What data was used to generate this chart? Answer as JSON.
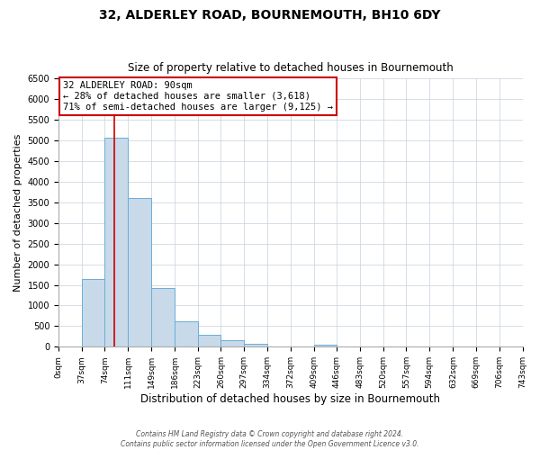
{
  "title": "32, ALDERLEY ROAD, BOURNEMOUTH, BH10 6DY",
  "subtitle": "Size of property relative to detached houses in Bournemouth",
  "xlabel": "Distribution of detached houses by size in Bournemouth",
  "ylabel": "Number of detached properties",
  "bin_edges": [
    0,
    37,
    74,
    111,
    149,
    186,
    223,
    260,
    297,
    334,
    372,
    409,
    446,
    483,
    520,
    557,
    594,
    632,
    669,
    706,
    743
  ],
  "bar_heights": [
    0,
    1650,
    5075,
    3600,
    1420,
    610,
    300,
    155,
    75,
    0,
    0,
    50,
    0,
    0,
    0,
    0,
    0,
    0,
    0,
    0
  ],
  "bar_color": "#c8d9ea",
  "bar_edge_color": "#6aaed6",
  "grid_color": "#c8d0dc",
  "property_line_x": 90,
  "property_line_color": "#cc0000",
  "annotation_text": "32 ALDERLEY ROAD: 90sqm\n← 28% of detached houses are smaller (3,618)\n71% of semi-detached houses are larger (9,125) →",
  "annotation_box_color": "#ffffff",
  "annotation_box_edge_color": "#cc0000",
  "ylim": [
    0,
    6500
  ],
  "yticks": [
    0,
    500,
    1000,
    1500,
    2000,
    2500,
    3000,
    3500,
    4000,
    4500,
    5000,
    5500,
    6000,
    6500
  ],
  "tick_labels": [
    "0sqm",
    "37sqm",
    "74sqm",
    "111sqm",
    "149sqm",
    "186sqm",
    "223sqm",
    "260sqm",
    "297sqm",
    "334sqm",
    "372sqm",
    "409sqm",
    "446sqm",
    "483sqm",
    "520sqm",
    "557sqm",
    "594sqm",
    "632sqm",
    "669sqm",
    "706sqm",
    "743sqm"
  ],
  "footer_line1": "Contains HM Land Registry data © Crown copyright and database right 2024.",
  "footer_line2": "Contains public sector information licensed under the Open Government Licence v3.0.",
  "background_color": "#ffffff",
  "plot_background_color": "#ffffff"
}
